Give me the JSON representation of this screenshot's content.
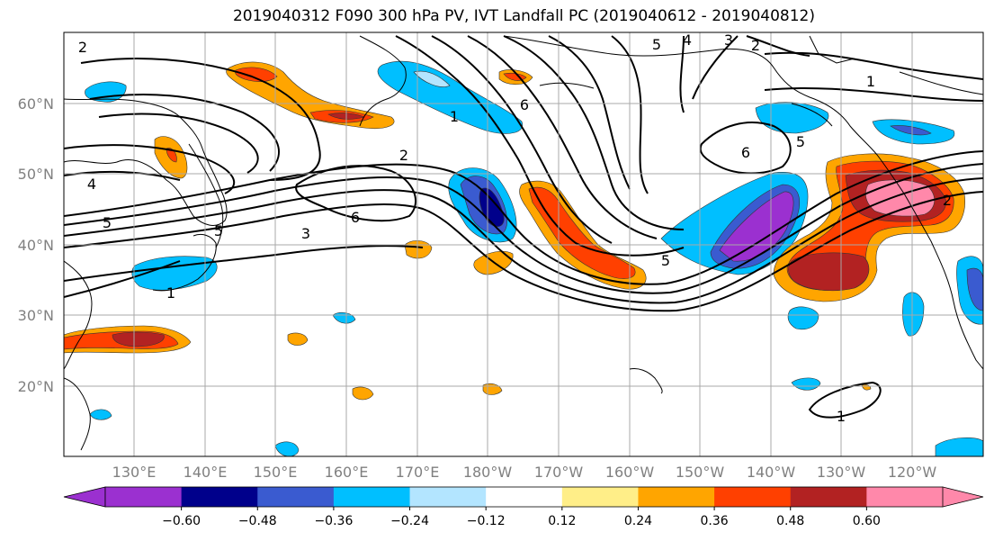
{
  "title": "2019040312 F090 300 hPa PV, IVT Landfall PC (2019040612 - 2019040812)",
  "lat_labels": [
    "60°N",
    "50°N",
    "40°N",
    "30°N",
    "20°N"
  ],
  "lon_labels": [
    "130°E",
    "140°E",
    "150°E",
    "160°E",
    "170°E",
    "180°W",
    "170°W",
    "160°W",
    "150°W",
    "140°W",
    "130°W",
    "120°W"
  ],
  "colorbar": {
    "colors": [
      "#9b30d0",
      "#00008b",
      "#3a5bd0",
      "#00bfff",
      "#b3e5ff",
      "#ffffff",
      "#ffee88",
      "#ffa500",
      "#ff4000",
      "#b22222",
      "#ff88aa"
    ],
    "tick_labels": [
      "−0.60",
      "−0.48",
      "−0.36",
      "−0.24",
      "−0.12",
      "0.12",
      "0.24",
      "0.36",
      "0.48",
      "0.60"
    ]
  },
  "contour_labels": [
    "2",
    "4",
    "5",
    "3",
    "6",
    "2",
    "1",
    "6",
    "5",
    "4",
    "3",
    "2",
    "1",
    "5",
    "6",
    "2",
    "5",
    "1",
    "1",
    "5"
  ]
}
